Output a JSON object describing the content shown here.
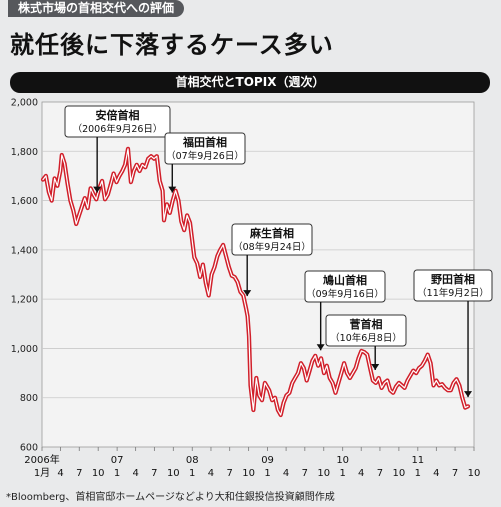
{
  "header": {
    "kicker": "株式市場の首相交代への評価",
    "headline": "就任後に下落するケース多い"
  },
  "chart_title": "首相交代とTOPIX（週次）",
  "source": "*Bloomberg、首相官邸ホームページなどより大和住銀投信投資顧問作成",
  "chart_data": {
    "type": "line",
    "title": "首相交代とTOPIX（週次）",
    "ylim": [
      600,
      2000
    ],
    "yticks": [
      600,
      800,
      1000,
      1200,
      1400,
      1600,
      1800,
      2000
    ],
    "ytick_labels": [
      "600",
      "800",
      "1,000",
      "1,200",
      "1,400",
      "1,600",
      "1,800",
      "2,000"
    ],
    "x_start": "2006-01",
    "x_end": "2011-10",
    "xticks": [
      {
        "date": "2006-01",
        "label": "1月"
      },
      {
        "date": "2006-04",
        "label": "4"
      },
      {
        "date": "2006-07",
        "label": "7"
      },
      {
        "date": "2006-10",
        "label": "10"
      },
      {
        "date": "2007-01",
        "label": "1"
      },
      {
        "date": "2007-04",
        "label": "4"
      },
      {
        "date": "2007-07",
        "label": "7"
      },
      {
        "date": "2007-10",
        "label": "10"
      },
      {
        "date": "2008-01",
        "label": "1"
      },
      {
        "date": "2008-04",
        "label": "4"
      },
      {
        "date": "2008-07",
        "label": "7"
      },
      {
        "date": "2008-10",
        "label": "10"
      },
      {
        "date": "2009-01",
        "label": "1"
      },
      {
        "date": "2009-04",
        "label": "4"
      },
      {
        "date": "2009-07",
        "label": "7"
      },
      {
        "date": "2009-10",
        "label": "10"
      },
      {
        "date": "2010-01",
        "label": "1"
      },
      {
        "date": "2010-04",
        "label": "4"
      },
      {
        "date": "2010-07",
        "label": "7"
      },
      {
        "date": "2010-10",
        "label": "10"
      },
      {
        "date": "2011-01",
        "label": "1"
      },
      {
        "date": "2011-04",
        "label": "4"
      },
      {
        "date": "2011-07",
        "label": "7"
      },
      {
        "date": "2011-10",
        "label": "10"
      }
    ],
    "year_labels": [
      {
        "date": "2006-01",
        "label": "2006年"
      },
      {
        "date": "2007-01",
        "label": "07"
      },
      {
        "date": "2008-01",
        "label": "08"
      },
      {
        "date": "2009-01",
        "label": "09"
      },
      {
        "date": "2010-01",
        "label": "10"
      },
      {
        "date": "2011-01",
        "label": "11"
      }
    ],
    "series": [
      {
        "color": "#d11f2a",
        "points": [
          [
            "2006-01-06",
            1685
          ],
          [
            "2006-01-20",
            1700
          ],
          [
            "2006-02-03",
            1635
          ],
          [
            "2006-02-17",
            1600
          ],
          [
            "2006-03-03",
            1690
          ],
          [
            "2006-03-17",
            1660
          ],
          [
            "2006-03-31",
            1720
          ],
          [
            "2006-04-07",
            1785
          ],
          [
            "2006-04-21",
            1750
          ],
          [
            "2006-05-05",
            1670
          ],
          [
            "2006-05-19",
            1600
          ],
          [
            "2006-06-02",
            1560
          ],
          [
            "2006-06-16",
            1505
          ],
          [
            "2006-06-30",
            1540
          ],
          [
            "2006-07-14",
            1575
          ],
          [
            "2006-07-28",
            1610
          ],
          [
            "2006-08-11",
            1570
          ],
          [
            "2006-08-25",
            1650
          ],
          [
            "2006-09-08",
            1625
          ],
          [
            "2006-09-22",
            1605
          ],
          [
            "2006-10-06",
            1650
          ],
          [
            "2006-10-20",
            1680
          ],
          [
            "2006-11-03",
            1605
          ],
          [
            "2006-11-17",
            1625
          ],
          [
            "2006-12-01",
            1665
          ],
          [
            "2006-12-15",
            1710
          ],
          [
            "2006-12-29",
            1675
          ],
          [
            "2007-01-12",
            1700
          ],
          [
            "2007-01-26",
            1720
          ],
          [
            "2007-02-09",
            1745
          ],
          [
            "2007-02-23",
            1810
          ],
          [
            "2007-03-09",
            1675
          ],
          [
            "2007-03-23",
            1720
          ],
          [
            "2007-04-06",
            1745
          ],
          [
            "2007-04-20",
            1720
          ],
          [
            "2007-05-04",
            1745
          ],
          [
            "2007-05-18",
            1735
          ],
          [
            "2007-06-01",
            1770
          ],
          [
            "2007-06-15",
            1780
          ],
          [
            "2007-06-29",
            1770
          ],
          [
            "2007-07-13",
            1780
          ],
          [
            "2007-07-27",
            1680
          ],
          [
            "2007-08-10",
            1640
          ],
          [
            "2007-08-17",
            1520
          ],
          [
            "2007-08-31",
            1585
          ],
          [
            "2007-09-14",
            1550
          ],
          [
            "2007-09-28",
            1600
          ],
          [
            "2007-10-12",
            1640
          ],
          [
            "2007-10-26",
            1600
          ],
          [
            "2007-11-09",
            1515
          ],
          [
            "2007-11-23",
            1480
          ],
          [
            "2007-12-07",
            1540
          ],
          [
            "2007-12-21",
            1510
          ],
          [
            "2008-01-11",
            1370
          ],
          [
            "2008-01-25",
            1345
          ],
          [
            "2008-02-08",
            1290
          ],
          [
            "2008-02-22",
            1340
          ],
          [
            "2008-03-07",
            1265
          ],
          [
            "2008-03-21",
            1215
          ],
          [
            "2008-04-04",
            1300
          ],
          [
            "2008-04-18",
            1330
          ],
          [
            "2008-05-02",
            1375
          ],
          [
            "2008-05-16",
            1400
          ],
          [
            "2008-05-30",
            1420
          ],
          [
            "2008-06-13",
            1375
          ],
          [
            "2008-06-27",
            1330
          ],
          [
            "2008-07-11",
            1295
          ],
          [
            "2008-07-25",
            1290
          ],
          [
            "2008-08-08",
            1270
          ],
          [
            "2008-08-22",
            1230
          ],
          [
            "2008-09-05",
            1215
          ],
          [
            "2008-09-19",
            1160
          ],
          [
            "2008-09-26",
            1130
          ],
          [
            "2008-10-03",
            1050
          ],
          [
            "2008-10-10",
            850
          ],
          [
            "2008-10-24",
            750
          ],
          [
            "2008-11-07",
            880
          ],
          [
            "2008-11-21",
            810
          ],
          [
            "2008-12-05",
            790
          ],
          [
            "2008-12-19",
            860
          ],
          [
            "2009-01-09",
            830
          ],
          [
            "2009-01-23",
            790
          ],
          [
            "2009-02-06",
            800
          ],
          [
            "2009-02-20",
            750
          ],
          [
            "2009-03-06",
            730
          ],
          [
            "2009-03-20",
            780
          ],
          [
            "2009-04-03",
            810
          ],
          [
            "2009-04-17",
            820
          ],
          [
            "2009-05-01",
            860
          ],
          [
            "2009-05-15",
            880
          ],
          [
            "2009-05-29",
            900
          ],
          [
            "2009-06-12",
            940
          ],
          [
            "2009-06-26",
            920
          ],
          [
            "2009-07-10",
            870
          ],
          [
            "2009-07-24",
            910
          ],
          [
            "2009-08-07",
            950
          ],
          [
            "2009-08-21",
            970
          ],
          [
            "2009-09-04",
            930
          ],
          [
            "2009-09-18",
            960
          ],
          [
            "2009-10-02",
            900
          ],
          [
            "2009-10-16",
            930
          ],
          [
            "2009-10-30",
            880
          ],
          [
            "2009-11-13",
            860
          ],
          [
            "2009-11-27",
            820
          ],
          [
            "2009-12-11",
            860
          ],
          [
            "2009-12-25",
            900
          ],
          [
            "2010-01-08",
            940
          ],
          [
            "2010-01-22",
            900
          ],
          [
            "2010-02-05",
            880
          ],
          [
            "2010-02-19",
            900
          ],
          [
            "2010-03-05",
            920
          ],
          [
            "2010-03-19",
            960
          ],
          [
            "2010-04-02",
            990
          ],
          [
            "2010-04-16",
            985
          ],
          [
            "2010-04-30",
            975
          ],
          [
            "2010-05-14",
            920
          ],
          [
            "2010-05-28",
            870
          ],
          [
            "2010-06-11",
            860
          ],
          [
            "2010-06-25",
            880
          ],
          [
            "2010-07-09",
            840
          ],
          [
            "2010-07-23",
            860
          ],
          [
            "2010-08-06",
            870
          ],
          [
            "2010-08-20",
            830
          ],
          [
            "2010-09-03",
            820
          ],
          [
            "2010-09-17",
            845
          ],
          [
            "2010-10-01",
            860
          ],
          [
            "2010-10-15",
            850
          ],
          [
            "2010-10-29",
            840
          ],
          [
            "2010-11-12",
            870
          ],
          [
            "2010-11-26",
            890
          ],
          [
            "2010-12-10",
            910
          ],
          [
            "2010-12-24",
            900
          ],
          [
            "2011-01-07",
            920
          ],
          [
            "2011-01-21",
            930
          ],
          [
            "2011-02-04",
            950
          ],
          [
            "2011-02-18",
            975
          ],
          [
            "2011-03-04",
            940
          ],
          [
            "2011-03-18",
            850
          ],
          [
            "2011-04-01",
            870
          ],
          [
            "2011-04-15",
            850
          ],
          [
            "2011-04-29",
            855
          ],
          [
            "2011-05-13",
            840
          ],
          [
            "2011-05-27",
            830
          ],
          [
            "2011-06-10",
            830
          ],
          [
            "2011-06-24",
            860
          ],
          [
            "2011-07-08",
            875
          ],
          [
            "2011-07-22",
            850
          ],
          [
            "2011-08-05",
            800
          ],
          [
            "2011-08-19",
            760
          ],
          [
            "2011-09-02",
            765
          ]
        ]
      }
    ],
    "annotations": [
      {
        "name": "安倍首相",
        "date_label": "（2006年9月26日）",
        "arrow_date": "2006-09-26",
        "arrow_value": 1600
      },
      {
        "name": "福田首相",
        "date_label": "（07年9月26日）",
        "arrow_date": "2007-09-26",
        "arrow_value": 1600
      },
      {
        "name": "麻生首相",
        "date_label": "（08年9月24日）",
        "arrow_date": "2008-09-24",
        "arrow_value": 1180
      },
      {
        "name": "鳩山首相",
        "date_label": "（09年9月16日）",
        "arrow_date": "2009-09-16",
        "arrow_value": 960
      },
      {
        "name": "菅首相",
        "date_label": "（10年6月8日）",
        "arrow_date": "2010-06-08",
        "arrow_value": 880
      },
      {
        "name": "野田首相",
        "date_label": "（11年9月2日）",
        "arrow_date": "2011-09-02",
        "arrow_value": 770
      }
    ]
  }
}
